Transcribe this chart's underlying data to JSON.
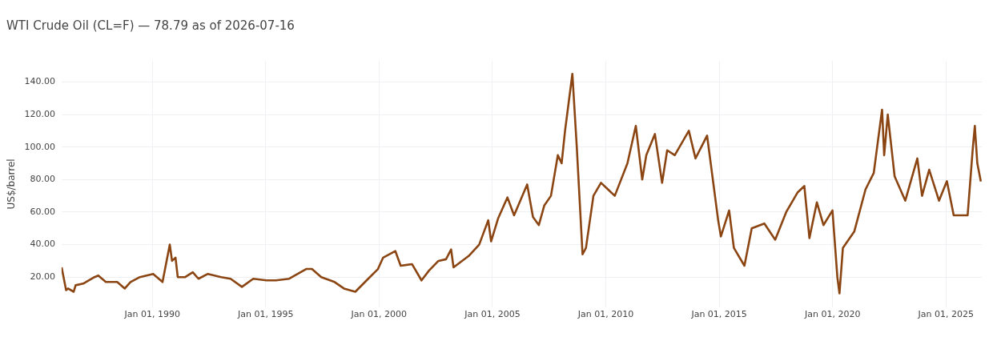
{
  "chart_data": {
    "type": "line",
    "title": "WTI Crude Oil (CL=F) — 78.79 as of 2026-07-16",
    "ylabel": "US$/barrel",
    "x": [
      "1986-01-02",
      "1986-03-15",
      "1986-04-15",
      "1986-07-15",
      "1986-08-15",
      "1986-12-15",
      "1987-06-15",
      "1987-08-15",
      "1987-12-15",
      "1988-06-15",
      "1988-10-15",
      "1989-01-15",
      "1989-06-15",
      "1990-01-15",
      "1990-06-15",
      "1990-10-10",
      "1990-11-15",
      "1991-01-10",
      "1991-02-15",
      "1991-06-15",
      "1991-10-15",
      "1992-01-15",
      "1992-06-15",
      "1993-01-15",
      "1993-06-15",
      "1993-12-15",
      "1994-06-15",
      "1995-01-15",
      "1995-06-15",
      "1996-01-15",
      "1996-10-15",
      "1997-01-15",
      "1997-06-15",
      "1998-01-15",
      "1998-06-15",
      "1998-12-15",
      "1999-06-15",
      "1999-12-15",
      "2000-03-07",
      "2000-09-20",
      "2000-12-15",
      "2001-06-15",
      "2001-11-15",
      "2002-03-15",
      "2002-08-15",
      "2002-12-15",
      "2003-03-07",
      "2003-04-15",
      "2003-12-15",
      "2004-06-01",
      "2004-10-25",
      "2004-12-10",
      "2005-04-01",
      "2005-08-30",
      "2005-12-15",
      "2006-07-14",
      "2006-10-15",
      "2007-01-18",
      "2007-04-15",
      "2007-08-01",
      "2007-11-20",
      "2008-01-20",
      "2008-03-15",
      "2008-07-11",
      "2008-09-20",
      "2008-12-22",
      "2009-02-15",
      "2009-06-15",
      "2009-10-15",
      "2010-05-25",
      "2010-12-15",
      "2011-04-29",
      "2011-08-10",
      "2011-10-15",
      "2012-03-01",
      "2012-06-25",
      "2012-09-15",
      "2013-01-15",
      "2013-08-30",
      "2013-12-15",
      "2014-06-20",
      "2014-12-15",
      "2015-01-28",
      "2015-06-10",
      "2015-08-25",
      "2016-02-11",
      "2016-06-08",
      "2016-12-28",
      "2017-06-21",
      "2017-12-15",
      "2018-06-15",
      "2018-10-03",
      "2018-12-24",
      "2019-04-23",
      "2019-08-07",
      "2019-12-30",
      "2020-03-18",
      "2020-04-21",
      "2020-06-15",
      "2020-12-15",
      "2021-06-15",
      "2021-10-25",
      "2022-03-08",
      "2022-04-11",
      "2022-06-08",
      "2022-09-26",
      "2023-03-17",
      "2023-09-27",
      "2023-12-12",
      "2024-04-05",
      "2024-09-10",
      "2025-01-15",
      "2025-05-05",
      "2025-12-15",
      "2026-03-10",
      "2026-04-10",
      "2026-05-20",
      "2026-07-16"
    ],
    "series": [
      {
        "color": "#8b4513",
        "values": [
          26,
          12,
          13,
          11,
          15,
          16,
          20,
          21,
          17,
          17,
          13,
          17,
          20,
          22,
          17,
          40,
          30,
          32,
          20,
          20,
          23,
          19,
          22,
          20,
          19,
          14,
          19,
          18,
          18,
          19,
          25,
          25,
          20,
          17,
          13,
          11,
          18,
          25,
          32,
          36,
          27,
          28,
          18,
          24,
          30,
          31,
          37,
          26,
          33,
          40,
          55,
          42,
          56,
          69,
          58,
          77,
          57,
          52,
          64,
          70,
          95,
          90,
          110,
          145,
          100,
          34,
          38,
          70,
          78,
          70,
          90,
          113,
          80,
          95,
          108,
          78,
          98,
          95,
          110,
          93,
          107,
          55,
          45,
          61,
          38,
          27,
          50,
          53,
          43,
          60,
          72,
          76,
          44,
          66,
          52,
          61,
          20,
          10,
          38,
          48,
          74,
          84,
          123,
          95,
          120,
          82,
          67,
          93,
          70,
          86,
          67,
          79,
          58,
          58,
          100,
          113,
          90,
          78.79
        ]
      }
    ],
    "xlim": [
      "1986-01-01",
      "2026-07-31"
    ],
    "xticks": [
      {
        "value": "1990-01-01",
        "label": "Jan 01, 1990"
      },
      {
        "value": "1995-01-01",
        "label": "Jan 01, 1995"
      },
      {
        "value": "2000-01-01",
        "label": "Jan 01, 2000"
      },
      {
        "value": "2005-01-01",
        "label": "Jan 01, 2005"
      },
      {
        "value": "2010-01-01",
        "label": "Jan 01, 2010"
      },
      {
        "value": "2015-01-01",
        "label": "Jan 01, 2015"
      },
      {
        "value": "2020-01-01",
        "label": "Jan 01, 2020"
      },
      {
        "value": "2025-01-01",
        "label": "Jan 01, 2025"
      }
    ],
    "ylim": [
      1.5,
      153
    ],
    "yticks": [
      {
        "value": 20,
        "label": "20.00"
      },
      {
        "value": 40,
        "label": "40.00"
      },
      {
        "value": 60,
        "label": "60.00"
      },
      {
        "value": 80,
        "label": "80.00"
      },
      {
        "value": 100,
        "label": "100.00"
      },
      {
        "value": 120,
        "label": "120.00"
      },
      {
        "value": 140,
        "label": "140.00"
      }
    ],
    "grid": true,
    "legend": false,
    "marker": "none",
    "line_style": "solid"
  }
}
